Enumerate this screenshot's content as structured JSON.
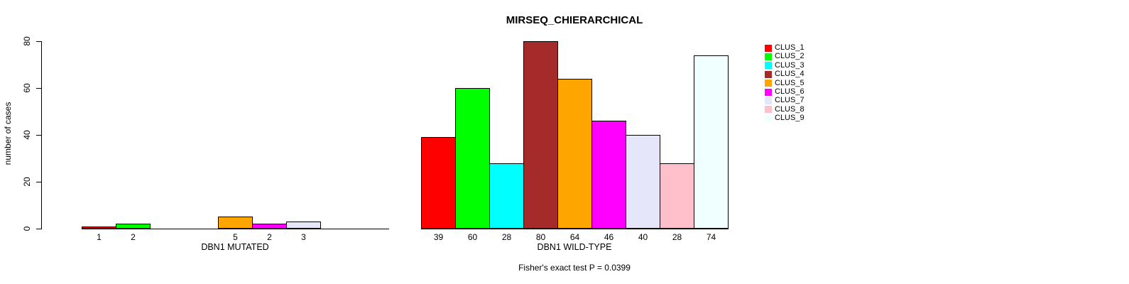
{
  "chart_data": {
    "type": "bar",
    "title": "MIRSEQ_CHIERARCHICAL",
    "ylabel": "number of cases",
    "ylim": [
      0,
      80
    ],
    "yticks": [
      0,
      20,
      40,
      60,
      80
    ],
    "grid": false,
    "legend_position": "right",
    "clusters": [
      "CLUS_1",
      "CLUS_2",
      "CLUS_3",
      "CLUS_4",
      "CLUS_5",
      "CLUS_6",
      "CLUS_7",
      "CLUS_8",
      "CLUS_9"
    ],
    "colors": [
      "#FF0000",
      "#00FF00",
      "#00FFFF",
      "#A52A2A",
      "#FFA500",
      "#FF00FF",
      "#E6E6FA",
      "#FFC0CB",
      "#F0FFFF"
    ],
    "groups": [
      {
        "label": "DBN1 MUTATED",
        "values": [
          1,
          2,
          0,
          0,
          5,
          2,
          3,
          0,
          0
        ]
      },
      {
        "label": "DBN1 WILD-TYPE",
        "values": [
          39,
          60,
          28,
          80,
          64,
          46,
          40,
          28,
          74
        ]
      }
    ],
    "annotation": "Fisher's exact test P = 0.0399"
  }
}
